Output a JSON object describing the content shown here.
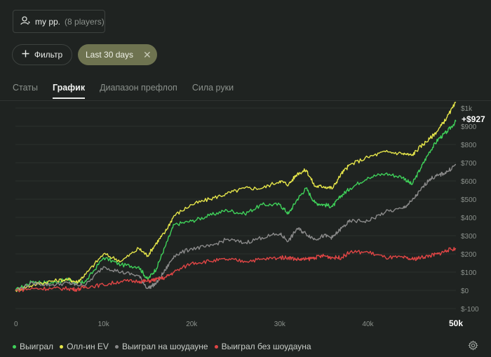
{
  "header": {
    "player_name": "my pp.",
    "player_count": "(8 players)",
    "filter_label": "Фильтр",
    "date_range_label": "Last 30 days"
  },
  "tabs": [
    {
      "label": "Статы",
      "active": false
    },
    {
      "label": "График",
      "active": true
    },
    {
      "label": "Диапазон префлоп",
      "active": false
    },
    {
      "label": "Сила руки",
      "active": false
    }
  ],
  "colors": {
    "won": "#3fd15a",
    "allin_ev": "#e6e64a",
    "showdown": "#8a8a8a",
    "non_showdown": "#e04545"
  },
  "chart_data": {
    "type": "line",
    "final_value_label": "+$927",
    "x_ticks": [
      "0",
      "10k",
      "20k",
      "30k",
      "40k",
      "50k"
    ],
    "y_ticks": [
      "$-100",
      "$0",
      "$100",
      "$200",
      "$300",
      "$400",
      "$500",
      "$600",
      "$700",
      "$800",
      "$900",
      "$1k"
    ],
    "xlim": [
      0,
      50000
    ],
    "ylim": [
      -100,
      1000
    ],
    "series": [
      {
        "name": "Выиграл",
        "color": "#3fd15a",
        "x": [
          0,
          2000,
          4000,
          6000,
          7000,
          8000,
          10000,
          12000,
          14000,
          15000,
          16000,
          17000,
          18000,
          20000,
          22000,
          24000,
          26000,
          28000,
          30000,
          31000,
          32000,
          33000,
          34000,
          35000,
          36000,
          37000,
          38000,
          40000,
          42000,
          44000,
          45000,
          46000,
          47000,
          48000,
          49000,
          50000
        ],
        "y": [
          0,
          50,
          40,
          60,
          35,
          50,
          180,
          140,
          130,
          60,
          120,
          240,
          360,
          380,
          410,
          440,
          420,
          470,
          470,
          420,
          500,
          560,
          480,
          470,
          460,
          520,
          560,
          620,
          640,
          620,
          580,
          670,
          760,
          830,
          870,
          927
        ]
      },
      {
        "name": "Олл-ин EV",
        "color": "#e6e64a",
        "x": [
          0,
          2000,
          4000,
          6000,
          7000,
          8000,
          10000,
          12000,
          14000,
          15000,
          16000,
          17000,
          18000,
          20000,
          22000,
          24000,
          26000,
          28000,
          30000,
          31000,
          32000,
          33000,
          34000,
          35000,
          36000,
          37000,
          38000,
          40000,
          42000,
          44000,
          45000,
          46000,
          47000,
          48000,
          49000,
          50000
        ],
        "y": [
          0,
          30,
          50,
          60,
          45,
          90,
          200,
          160,
          230,
          190,
          260,
          320,
          410,
          470,
          500,
          530,
          560,
          560,
          600,
          580,
          640,
          660,
          570,
          570,
          560,
          640,
          690,
          730,
          760,
          750,
          740,
          790,
          830,
          880,
          950,
          1030
        ]
      },
      {
        "name": "Выиграл на шоудауне",
        "color": "#8a8a8a",
        "x": [
          0,
          2000,
          4000,
          6000,
          7000,
          8000,
          10000,
          12000,
          14000,
          15000,
          16000,
          17000,
          18000,
          20000,
          22000,
          24000,
          26000,
          28000,
          30000,
          31000,
          32000,
          33000,
          34000,
          35000,
          36000,
          37000,
          38000,
          40000,
          42000,
          44000,
          45000,
          46000,
          47000,
          48000,
          49000,
          50000
        ],
        "y": [
          0,
          40,
          30,
          40,
          30,
          30,
          130,
          100,
          80,
          10,
          40,
          110,
          190,
          230,
          240,
          280,
          260,
          290,
          310,
          270,
          340,
          310,
          280,
          300,
          290,
          340,
          380,
          380,
          430,
          450,
          490,
          550,
          610,
          630,
          650,
          690
        ]
      },
      {
        "name": "Выиграл без шоудауна",
        "color": "#e04545",
        "x": [
          0,
          2000,
          4000,
          6000,
          7000,
          8000,
          10000,
          12000,
          14000,
          15000,
          16000,
          17000,
          18000,
          20000,
          22000,
          24000,
          26000,
          28000,
          30000,
          31000,
          32000,
          33000,
          34000,
          35000,
          36000,
          37000,
          38000,
          40000,
          42000,
          44000,
          45000,
          46000,
          47000,
          48000,
          49000,
          50000
        ],
        "y": [
          0,
          10,
          10,
          10,
          5,
          20,
          30,
          50,
          50,
          50,
          60,
          70,
          100,
          150,
          160,
          170,
          160,
          170,
          180,
          180,
          170,
          170,
          180,
          190,
          180,
          180,
          210,
          210,
          180,
          180,
          170,
          180,
          190,
          200,
          220,
          230
        ]
      }
    ]
  },
  "footer": {
    "settings_icon": "gear-icon"
  }
}
